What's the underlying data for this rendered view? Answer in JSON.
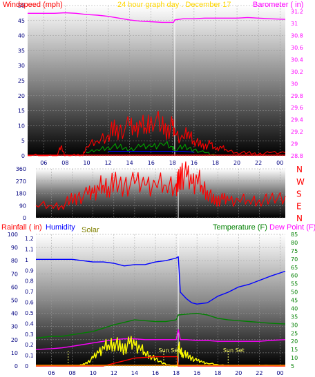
{
  "colors": {
    "wind": "#ff0000",
    "gust_alt": "#00a000",
    "wind_dir_bar": "#0000ff",
    "barometer": "#ff00ff",
    "title": "#ffd700",
    "humidity": "#0000ff",
    "temperature": "#008000",
    "dew_point": "#ff00ff",
    "solar": "#ffff00",
    "rain": "#ff0000",
    "sun_set_marker": "#ffff66",
    "midnight_marker": "#ffffff",
    "gradient_top": "#ffffff",
    "gradient_bottom": "#000000"
  },
  "chart_data": [
    {
      "type": "line",
      "panel": "wind",
      "title": "24 hour graph day . December 17",
      "left_axis_label": "Windspeed (mph)",
      "right_axis_label": "Barometer ( in)",
      "x_ticks": [
        "06",
        "08",
        "10",
        "12",
        "14",
        "16",
        "18",
        "16",
        "18",
        "20",
        "22",
        "00"
      ],
      "left_ticks": [
        "50",
        "45",
        "40",
        "35",
        "30",
        "25",
        "20",
        "15",
        "10",
        "5",
        "0"
      ],
      "right_ticks": [
        "31.2",
        "31",
        "30.8",
        "30.6",
        "30.4",
        "30.2",
        "30",
        "29.8",
        "29.6",
        "29.4",
        "29.2",
        "29",
        "28.8"
      ],
      "ylim_left": [
        0,
        50
      ],
      "ylim_right": [
        28.8,
        31.3
      ],
      "midnight_hour": 18.2,
      "series": [
        {
          "name": "Barometer ( in)",
          "axis": "right",
          "x": [
            4.5,
            6,
            7,
            8,
            9,
            10,
            11,
            12,
            13,
            14,
            15,
            16,
            17,
            18.1,
            18.2,
            19,
            20,
            21,
            22,
            23,
            24,
            25,
            26,
            27,
            28.5
          ],
          "values": [
            31.17,
            31.17,
            31.17,
            31.18,
            31.17,
            31.15,
            31.14,
            31.12,
            31.09,
            31.06,
            31.04,
            31.03,
            31.02,
            31.02,
            31.06,
            31.08,
            31.08,
            31.09,
            31.09,
            31.09,
            31.09,
            31.1,
            31.09,
            31.08,
            31.07
          ]
        },
        {
          "name": "Windspeed (mph)",
          "axis": "left",
          "style": "spiky",
          "x": [
            4.5,
            6,
            7.2,
            7.6,
            8,
            9,
            9.6,
            10,
            11,
            12,
            12.5,
            13,
            14,
            14.5,
            15,
            15.5,
            16,
            17,
            17.5,
            18,
            18.2,
            19,
            19.5,
            20,
            20.5,
            21,
            21.5,
            22,
            22.5,
            23,
            24,
            25,
            26,
            27,
            28.5
          ],
          "values": [
            0,
            0,
            0,
            3,
            0,
            0,
            0,
            3,
            5,
            7,
            9,
            8,
            10,
            8,
            11,
            9,
            13,
            10,
            8,
            10,
            7,
            6,
            8,
            5,
            4,
            3,
            4,
            2,
            3,
            2,
            1,
            1,
            0.5,
            1,
            1
          ]
        },
        {
          "name": "",
          "axis": "left",
          "style": "spiky",
          "x": [
            10,
            11,
            12,
            13,
            14,
            15,
            16,
            17,
            18,
            18.2,
            19,
            20,
            21,
            22
          ],
          "values": [
            1,
            2,
            3,
            3,
            2,
            3,
            3,
            4,
            3,
            2,
            3,
            2,
            1,
            0
          ]
        },
        {
          "name": "",
          "axis": "left",
          "style": "flat",
          "x": [
            12,
            13,
            14,
            15,
            16,
            17,
            18,
            18.2,
            19,
            20
          ],
          "values": [
            1.5,
            1.5,
            1.5,
            1.5,
            1.5,
            1.5,
            1.5,
            1.5,
            1.5,
            1.2
          ]
        }
      ]
    },
    {
      "type": "scatter",
      "panel": "wind_direction",
      "left_ticks": [
        "360",
        "270",
        "180",
        "90",
        "0"
      ],
      "right_ticks": [
        "N",
        "W",
        "S",
        "E",
        "N"
      ],
      "ylim": [
        0,
        360
      ],
      "midnight_hour": 18.2,
      "series": [
        {
          "name": "",
          "x": [
            4.5,
            6,
            7,
            7.8,
            8.5,
            9.5,
            10,
            10.5,
            11,
            11.5,
            12,
            13,
            14,
            15,
            16,
            17,
            18,
            18.2,
            18.5,
            19,
            19.5,
            20,
            20.5,
            21,
            21.5,
            22,
            22.5,
            23,
            24,
            25,
            26,
            27,
            28.5
          ],
          "values": [
            90,
            90,
            90,
            130,
            150,
            170,
            180,
            220,
            240,
            230,
            250,
            240,
            250,
            240,
            250,
            240,
            250,
            250,
            330,
            300,
            250,
            290,
            230,
            200,
            130,
            130,
            135,
            130,
            130,
            130,
            132,
            130,
            160
          ]
        }
      ]
    },
    {
      "type": "line",
      "panel": "climate",
      "left_axis_label": "Rainfall ( in)",
      "humidity_label": "Humidity",
      "solar_label": "Solar",
      "temperature_label": "Temperature (F)",
      "dew_point_label": "Dew Point (F)",
      "x_ticks": [
        "06",
        "08",
        "10",
        "12",
        "14",
        "16",
        "18",
        "16",
        "18",
        "20",
        "22",
        "00"
      ],
      "humidity_ticks": [
        "100",
        "90",
        "80",
        "70",
        "60",
        "50",
        "40",
        "30",
        "20",
        "10",
        "0"
      ],
      "rain_ticks": [
        "1.2",
        "1.1",
        "1",
        "0.9",
        "0.8",
        "0.7",
        "0.6",
        "0.5",
        "0.4",
        "0.3",
        "0.2",
        "0.1",
        "0"
      ],
      "temperature_ticks": [
        "85",
        "80",
        "75",
        "70",
        "65",
        "60",
        "55",
        "50",
        "45",
        "40",
        "35",
        "30",
        "25",
        "20",
        "15",
        "10",
        "5"
      ],
      "ylim_humidity": [
        0,
        100
      ],
      "ylim_temperature": [
        5,
        85
      ],
      "midnight_hour": 18.2,
      "annotations": [
        {
          "text": "Sun Set",
          "x": 16.8
        },
        {
          "text": "Sun Set",
          "x": 23.0
        }
      ],
      "sun_markers": [
        7.6,
        16.8,
        23.0
      ],
      "series": [
        {
          "name": "Humidity",
          "axis": "humidity",
          "x": [
            4.5,
            6,
            7,
            8,
            9,
            10,
            11,
            12,
            13,
            14,
            15,
            16,
            17,
            18,
            18.2,
            18.4,
            19,
            19.5,
            20,
            21,
            22,
            23,
            24,
            25,
            26,
            27,
            28.5
          ],
          "values": [
            81,
            81,
            81,
            81,
            80,
            79,
            79,
            78,
            76,
            77,
            77,
            79,
            80,
            82,
            83,
            56,
            51,
            48,
            47,
            48,
            53,
            56,
            60,
            62,
            65,
            68,
            72
          ]
        },
        {
          "name": "Temperature (F)",
          "axis": "temperature",
          "x": [
            4.5,
            6,
            7,
            8,
            9,
            10,
            11,
            12,
            13,
            14,
            15,
            16,
            17,
            18,
            18.2,
            19,
            20,
            21,
            22,
            23,
            24,
            25,
            26,
            27,
            28.5
          ],
          "values": [
            22,
            23,
            23,
            24,
            25,
            26,
            28,
            30,
            31.5,
            33,
            32.5,
            32,
            32,
            33,
            36,
            36.5,
            37,
            36,
            34,
            33,
            32.5,
            32,
            31.5,
            31,
            30.5
          ]
        },
        {
          "name": "Dew Point (F)",
          "axis": "temperature",
          "x": [
            4.5,
            6,
            7,
            8,
            9,
            10,
            11,
            12,
            13,
            14,
            15,
            16,
            17,
            18,
            18.2,
            18.4,
            19,
            20,
            21,
            22,
            23,
            24,
            25,
            26,
            27,
            28.5
          ],
          "values": [
            15,
            15.5,
            16,
            17,
            18,
            19,
            20,
            21,
            21.5,
            21.5,
            21,
            21,
            21,
            21,
            27,
            21,
            21,
            20.5,
            20.5,
            20,
            20,
            20,
            20,
            20,
            20.5,
            21
          ]
        },
        {
          "name": "Solar",
          "axis": "humidity",
          "style": "spiky",
          "x": [
            4.5,
            7.6,
            8.5,
            9,
            9.5,
            10,
            10.5,
            11,
            11.5,
            12,
            12.5,
            13,
            13.5,
            14,
            14.5,
            15,
            15.5,
            16,
            16.8,
            17.5,
            18.1,
            18.2,
            18.4,
            18.6,
            19,
            19.5,
            20,
            20.5,
            21,
            22,
            23,
            28.5
          ],
          "values": [
            0,
            0,
            0,
            1,
            3,
            6,
            10,
            14,
            16,
            18,
            15,
            13,
            17,
            16,
            14,
            10,
            8,
            5,
            2,
            0,
            0,
            15,
            12,
            10,
            8,
            6,
            4,
            3,
            2,
            1,
            0,
            0
          ]
        },
        {
          "name": "Rainfall ( in)",
          "axis": "humidity",
          "x": [
            4.5,
            11,
            11.5,
            12,
            12.5,
            13,
            13.5,
            14,
            15,
            16,
            17,
            18.1,
            18.2,
            28.5
          ],
          "values": [
            0,
            0,
            1,
            2,
            3,
            4,
            5,
            6,
            6.5,
            7,
            7,
            7,
            0,
            0
          ]
        }
      ]
    }
  ]
}
